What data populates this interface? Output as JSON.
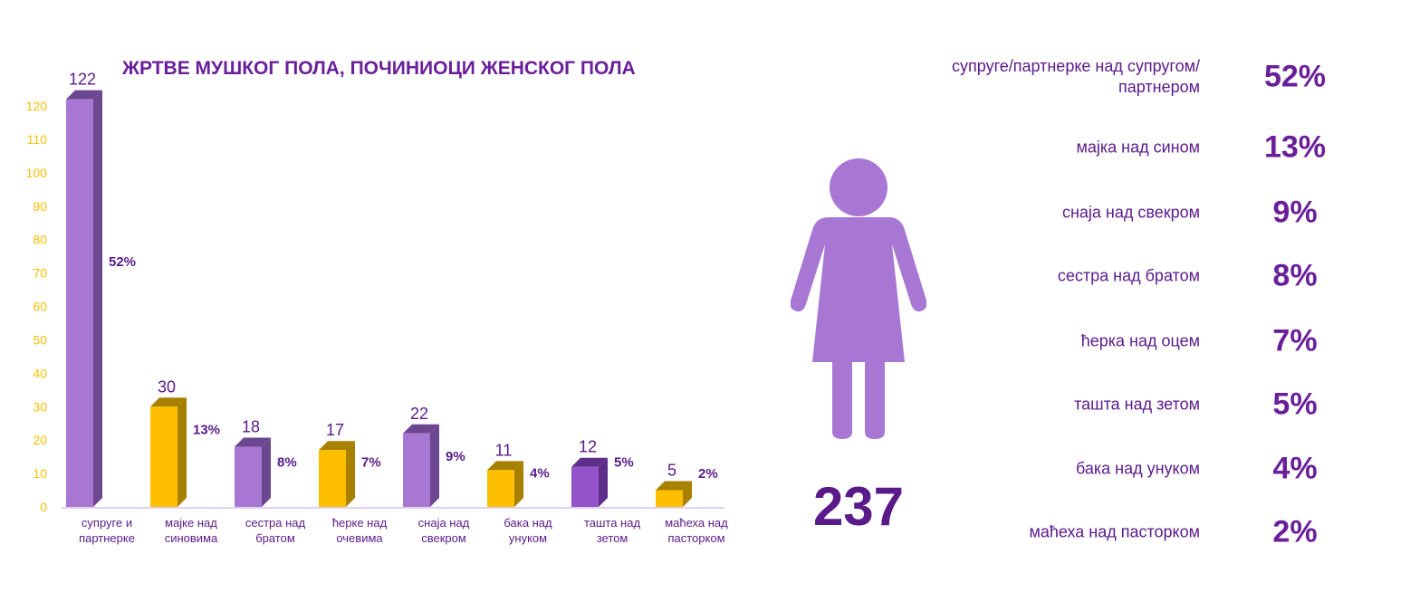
{
  "chart_data": {
    "type": "bar",
    "title": "ЖРТВЕ МУШКОГ ПОЛА, ПОЧИНИОЦИ ЖЕНСКОГ ПОЛА",
    "categories": [
      [
        "супруге и",
        "партнерке"
      ],
      [
        "мајке над",
        "синовима"
      ],
      [
        "сестра над",
        "братом"
      ],
      [
        "ћерке над",
        "очевима"
      ],
      [
        "снаја над",
        "свекром"
      ],
      [
        "бака над",
        "унуком"
      ],
      [
        "ташта над",
        "зетом"
      ],
      [
        "маћеха над",
        "пасторком"
      ]
    ],
    "values": [
      122,
      30,
      18,
      17,
      22,
      11,
      12,
      5
    ],
    "percent_labels": [
      "52%",
      "13%",
      "8%",
      "7%",
      "9%",
      "4%",
      "5%",
      "2%"
    ],
    "bar_colors": [
      "#a877d4",
      "#fdbf00",
      "#a877d4",
      "#fdbf00",
      "#a877d4",
      "#fdbf00",
      "#9352c8",
      "#fdbf00"
    ],
    "side_colors": [
      "#6c4790",
      "#a88000",
      "#6c4790",
      "#a88000",
      "#6c4790",
      "#a88000",
      "#5e2f8a",
      "#a88000"
    ],
    "ylim": [
      0,
      120
    ],
    "yticks": [
      0,
      10,
      20,
      30,
      40,
      50,
      60,
      70,
      80,
      90,
      100,
      110,
      120
    ],
    "xlabel": "",
    "ylabel": "",
    "grid": false
  },
  "total": "237",
  "breakdown": [
    {
      "label": "супруге/партнерке над супругом/партнером",
      "pct": "52%"
    },
    {
      "label": "мајка над сином",
      "pct": "13%"
    },
    {
      "label": "снаја над свекром",
      "pct": "9%"
    },
    {
      "label": "сестра над братом",
      "pct": "8%"
    },
    {
      "label": "ћерка над оцем",
      "pct": "7%"
    },
    {
      "label": "ташта над зетом",
      "pct": "5%"
    },
    {
      "label": "бака над унуком",
      "pct": "4%"
    },
    {
      "label": "маћеха над пасторком",
      "pct": "2%"
    }
  ],
  "colors": {
    "purple": "#a877d4",
    "text": "#6a1f9a",
    "axis": "#fdbf00"
  }
}
